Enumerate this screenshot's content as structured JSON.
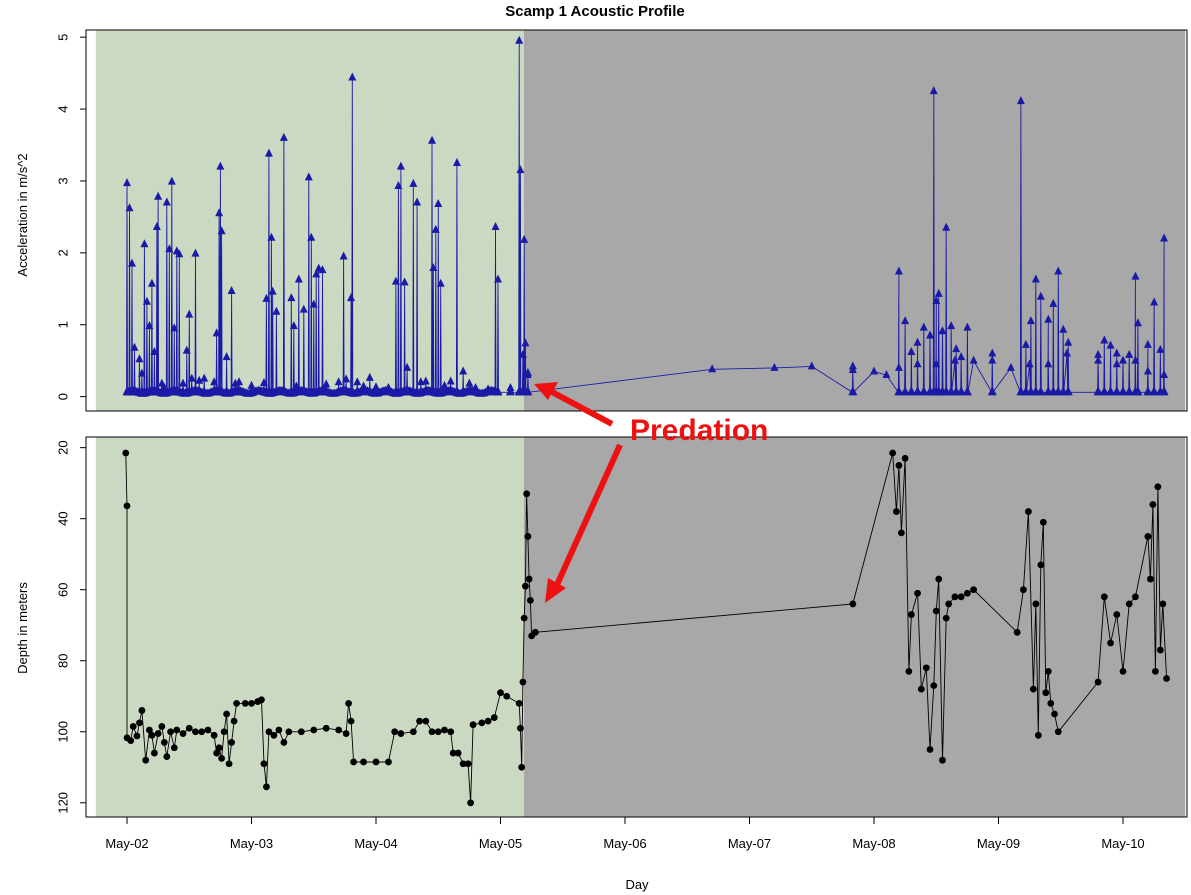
{
  "chart_data": {
    "type": "line",
    "title": "Scamp 1 Acoustic Profile",
    "xlabel": "Day",
    "x_ticks": [
      "May-02",
      "May-03",
      "May-04",
      "May-05",
      "May-06",
      "May-07",
      "May-08",
      "May-09",
      "May-10"
    ],
    "xlim": [
      "2011-05-01T18:00",
      "2011-05-10T12:00"
    ],
    "background_regions": [
      {
        "from": "2011-05-01T18:00",
        "to": "2011-05-05T04:30",
        "color": "#cbd9c3"
      },
      {
        "from": "2011-05-05T04:30",
        "to": "2011-05-10T12:00",
        "color": "#a8a8a8"
      }
    ],
    "panels": [
      {
        "name": "acceleration",
        "ylabel": "Acceleration in m/s^2",
        "ylim": [
          -0.2,
          5.1
        ],
        "y_ticks": [
          0,
          1,
          2,
          3,
          4,
          5
        ],
        "y_inverted": false,
        "marker": "triangle",
        "color": "#1a1aa6",
        "spikes": [
          [
            0.0,
            2.97
          ],
          [
            0.02,
            2.62
          ],
          [
            0.04,
            1.85
          ],
          [
            0.06,
            0.68
          ],
          [
            0.1,
            0.52
          ],
          [
            0.12,
            0.32
          ],
          [
            0.14,
            2.12
          ],
          [
            0.16,
            1.32
          ],
          [
            0.18,
            0.98
          ],
          [
            0.2,
            1.57
          ],
          [
            0.22,
            0.62
          ],
          [
            0.24,
            2.36
          ],
          [
            0.25,
            2.78
          ],
          [
            0.28,
            0.18
          ],
          [
            0.3,
            0.12
          ],
          [
            0.32,
            2.7
          ],
          [
            0.34,
            2.05
          ],
          [
            0.36,
            2.99
          ],
          [
            0.38,
            0.95
          ],
          [
            0.4,
            2.02
          ],
          [
            0.42,
            1.98
          ],
          [
            0.45,
            0.18
          ],
          [
            0.48,
            0.64
          ],
          [
            0.5,
            1.14
          ],
          [
            0.52,
            0.25
          ],
          [
            0.55,
            1.99
          ],
          [
            0.58,
            0.22
          ],
          [
            0.62,
            0.25
          ],
          [
            0.7,
            0.2
          ],
          [
            0.72,
            0.88
          ],
          [
            0.74,
            2.55
          ],
          [
            0.75,
            3.2
          ],
          [
            0.76,
            2.3
          ],
          [
            0.8,
            0.55
          ],
          [
            0.84,
            1.47
          ],
          [
            0.87,
            0.18
          ],
          [
            0.9,
            0.2
          ],
          [
            1.0,
            0.15
          ],
          [
            1.1,
            0.19
          ],
          [
            1.12,
            1.36
          ],
          [
            1.14,
            3.38
          ],
          [
            1.16,
            2.21
          ],
          [
            1.17,
            1.46
          ],
          [
            1.2,
            1.18
          ],
          [
            1.26,
            3.6
          ],
          [
            1.32,
            1.37
          ],
          [
            1.34,
            0.98
          ],
          [
            1.36,
            0.14
          ],
          [
            1.38,
            1.63
          ],
          [
            1.42,
            1.21
          ],
          [
            1.46,
            3.05
          ],
          [
            1.48,
            2.21
          ],
          [
            1.5,
            1.28
          ],
          [
            1.52,
            1.7
          ],
          [
            1.54,
            1.78
          ],
          [
            1.57,
            1.76
          ],
          [
            1.6,
            0.17
          ],
          [
            1.7,
            0.2
          ],
          [
            1.74,
            1.95
          ],
          [
            1.76,
            0.24
          ],
          [
            1.8,
            1.37
          ],
          [
            1.81,
            4.44
          ],
          [
            1.85,
            0.2
          ],
          [
            1.9,
            0.14
          ],
          [
            1.95,
            0.26
          ],
          [
            2.0,
            0.13
          ],
          [
            2.1,
            0.12
          ],
          [
            2.16,
            1.6
          ],
          [
            2.18,
            2.93
          ],
          [
            2.2,
            3.2
          ],
          [
            2.23,
            1.59
          ],
          [
            2.25,
            0.4
          ],
          [
            2.3,
            2.96
          ],
          [
            2.33,
            2.7
          ],
          [
            2.36,
            0.2
          ],
          [
            2.4,
            0.21
          ],
          [
            2.45,
            3.56
          ],
          [
            2.46,
            1.79
          ],
          [
            2.48,
            2.32
          ],
          [
            2.5,
            2.68
          ],
          [
            2.52,
            1.57
          ],
          [
            2.55,
            0.15
          ],
          [
            2.6,
            0.21
          ],
          [
            2.65,
            3.25
          ],
          [
            2.7,
            0.35
          ],
          [
            2.75,
            0.18
          ],
          [
            2.8,
            0.12
          ],
          [
            2.9,
            0.1
          ],
          [
            2.96,
            2.36
          ],
          [
            2.98,
            1.63
          ],
          [
            3.08,
            0.12
          ],
          [
            3.15,
            4.95
          ],
          [
            3.16,
            3.15
          ],
          [
            3.18,
            0.58
          ],
          [
            3.19,
            2.18
          ],
          [
            3.2,
            0.74
          ],
          [
            3.22,
            0.3
          ],
          [
            5.83,
            0.42
          ],
          [
            6.2,
            1.74
          ],
          [
            6.25,
            1.05
          ],
          [
            6.3,
            0.62
          ],
          [
            6.35,
            0.75
          ],
          [
            6.4,
            0.96
          ],
          [
            6.45,
            0.85
          ],
          [
            6.48,
            4.25
          ],
          [
            6.5,
            1.33
          ],
          [
            6.52,
            1.43
          ],
          [
            6.55,
            0.91
          ],
          [
            6.58,
            2.35
          ],
          [
            6.62,
            0.98
          ],
          [
            6.66,
            0.66
          ],
          [
            6.7,
            0.55
          ],
          [
            6.75,
            0.96
          ],
          [
            6.95,
            0.6
          ],
          [
            7.18,
            4.11
          ],
          [
            7.22,
            0.72
          ],
          [
            7.26,
            1.05
          ],
          [
            7.3,
            1.63
          ],
          [
            7.34,
            1.39
          ],
          [
            7.4,
            1.07
          ],
          [
            7.44,
            1.29
          ],
          [
            7.48,
            1.74
          ],
          [
            7.52,
            0.93
          ],
          [
            7.56,
            0.75
          ],
          [
            7.8,
            0.58
          ],
          [
            7.85,
            0.78
          ],
          [
            7.9,
            0.71
          ],
          [
            7.95,
            0.6
          ],
          [
            8.0,
            0.5
          ],
          [
            8.05,
            0.58
          ],
          [
            8.1,
            1.67
          ],
          [
            8.12,
            1.02
          ],
          [
            8.2,
            0.72
          ],
          [
            8.25,
            1.31
          ],
          [
            8.3,
            0.65
          ],
          [
            8.33,
            2.2
          ]
        ],
        "ridge": [
          [
            3.22,
            0.33
          ],
          [
            4.7,
            0.38
          ],
          [
            5.2,
            0.4
          ],
          [
            5.5,
            0.42
          ],
          [
            5.83,
            0.37
          ],
          [
            6.0,
            0.35
          ],
          [
            6.1,
            0.3
          ],
          [
            6.2,
            0.4
          ],
          [
            6.35,
            0.45
          ],
          [
            6.5,
            0.45
          ],
          [
            6.65,
            0.5
          ],
          [
            6.8,
            0.5
          ],
          [
            6.95,
            0.5
          ],
          [
            7.1,
            0.4
          ],
          [
            7.25,
            0.45
          ],
          [
            7.4,
            0.45
          ],
          [
            7.55,
            0.6
          ],
          [
            7.8,
            0.5
          ],
          [
            7.95,
            0.45
          ],
          [
            8.1,
            0.5
          ],
          [
            8.2,
            0.35
          ],
          [
            8.33,
            0.3
          ]
        ]
      },
      {
        "name": "depth",
        "ylabel": "Depth in meters",
        "ylim": [
          124,
          17
        ],
        "y_ticks": [
          20,
          40,
          60,
          80,
          100,
          120
        ],
        "y_inverted": true,
        "marker": "circle",
        "color": "#000000",
        "points": [
          [
            -0.01,
            21.5
          ],
          [
            0.0,
            36.4
          ],
          [
            0.0,
            101.7
          ],
          [
            0.03,
            102.5
          ],
          [
            0.05,
            98.5
          ],
          [
            0.08,
            101.2
          ],
          [
            0.1,
            97.5
          ],
          [
            0.12,
            94.0
          ],
          [
            0.15,
            108.0
          ],
          [
            0.18,
            99.5
          ],
          [
            0.2,
            101.0
          ],
          [
            0.22,
            106.0
          ],
          [
            0.25,
            100.5
          ],
          [
            0.28,
            98.5
          ],
          [
            0.3,
            103.0
          ],
          [
            0.32,
            107.0
          ],
          [
            0.35,
            100.0
          ],
          [
            0.38,
            104.5
          ],
          [
            0.4,
            99.5
          ],
          [
            0.45,
            100.5
          ],
          [
            0.5,
            99.0
          ],
          [
            0.55,
            100.0
          ],
          [
            0.6,
            100.0
          ],
          [
            0.65,
            99.5
          ],
          [
            0.7,
            101.0
          ],
          [
            0.72,
            106.0
          ],
          [
            0.74,
            104.5
          ],
          [
            0.76,
            107.5
          ],
          [
            0.78,
            100.0
          ],
          [
            0.8,
            95.0
          ],
          [
            0.82,
            109.0
          ],
          [
            0.84,
            103.0
          ],
          [
            0.86,
            97.0
          ],
          [
            0.88,
            92.0
          ],
          [
            0.95,
            92.0
          ],
          [
            1.0,
            92.0
          ],
          [
            1.05,
            91.5
          ],
          [
            1.08,
            91.0
          ],
          [
            1.1,
            109.0
          ],
          [
            1.12,
            115.5
          ],
          [
            1.14,
            100.0
          ],
          [
            1.18,
            101.0
          ],
          [
            1.22,
            99.5
          ],
          [
            1.26,
            103.0
          ],
          [
            1.3,
            100.0
          ],
          [
            1.4,
            100.0
          ],
          [
            1.5,
            99.5
          ],
          [
            1.6,
            99.0
          ],
          [
            1.7,
            99.5
          ],
          [
            1.76,
            100.5
          ],
          [
            1.78,
            92.0
          ],
          [
            1.8,
            97.0
          ],
          [
            1.82,
            108.5
          ],
          [
            1.9,
            108.5
          ],
          [
            2.0,
            108.5
          ],
          [
            2.1,
            108.5
          ],
          [
            2.15,
            100.0
          ],
          [
            2.2,
            100.5
          ],
          [
            2.3,
            100.0
          ],
          [
            2.35,
            97.0
          ],
          [
            2.4,
            97.0
          ],
          [
            2.45,
            100.0
          ],
          [
            2.5,
            100.0
          ],
          [
            2.55,
            99.5
          ],
          [
            2.6,
            100.0
          ],
          [
            2.62,
            106.0
          ],
          [
            2.66,
            106.0
          ],
          [
            2.7,
            109.0
          ],
          [
            2.74,
            109.0
          ],
          [
            2.76,
            120.0
          ],
          [
            2.78,
            98.0
          ],
          [
            2.85,
            97.5
          ],
          [
            2.9,
            97.0
          ],
          [
            2.95,
            96.0
          ],
          [
            3.0,
            89.0
          ],
          [
            3.05,
            90.0
          ],
          [
            3.15,
            92.0
          ],
          [
            3.16,
            99.0
          ],
          [
            3.17,
            110.0
          ],
          [
            3.18,
            86.0
          ],
          [
            3.19,
            68.0
          ],
          [
            3.2,
            59.0
          ],
          [
            3.21,
            33.0
          ],
          [
            3.22,
            45.0
          ],
          [
            3.23,
            57.0
          ],
          [
            3.24,
            63.0
          ],
          [
            3.25,
            73.0
          ],
          [
            3.28,
            72.0
          ],
          [
            5.83,
            64.0
          ],
          [
            6.15,
            21.5
          ],
          [
            6.18,
            38.0
          ],
          [
            6.2,
            25.0
          ],
          [
            6.22,
            44.0
          ],
          [
            6.25,
            23.0
          ],
          [
            6.28,
            83.0
          ],
          [
            6.3,
            67.0
          ],
          [
            6.35,
            61.0
          ],
          [
            6.38,
            88.0
          ],
          [
            6.42,
            82.0
          ],
          [
            6.45,
            105.0
          ],
          [
            6.48,
            87.0
          ],
          [
            6.5,
            66.0
          ],
          [
            6.52,
            57.0
          ],
          [
            6.55,
            108.0
          ],
          [
            6.58,
            68.0
          ],
          [
            6.6,
            64.0
          ],
          [
            6.65,
            62.0
          ],
          [
            6.7,
            62.0
          ],
          [
            6.75,
            61.0
          ],
          [
            6.8,
            60.0
          ],
          [
            7.15,
            72.0
          ],
          [
            7.2,
            60.0
          ],
          [
            7.24,
            38.0
          ],
          [
            7.28,
            88.0
          ],
          [
            7.3,
            64.0
          ],
          [
            7.32,
            101.0
          ],
          [
            7.34,
            53.0
          ],
          [
            7.36,
            41.0
          ],
          [
            7.38,
            89.0
          ],
          [
            7.4,
            83.0
          ],
          [
            7.42,
            92.0
          ],
          [
            7.45,
            95.0
          ],
          [
            7.48,
            100.0
          ],
          [
            7.8,
            86.0
          ],
          [
            7.85,
            62.0
          ],
          [
            7.9,
            75.0
          ],
          [
            7.95,
            67.0
          ],
          [
            8.0,
            83.0
          ],
          [
            8.05,
            64.0
          ],
          [
            8.1,
            62.0
          ],
          [
            8.2,
            45.0
          ],
          [
            8.22,
            57.0
          ],
          [
            8.24,
            36.0
          ],
          [
            8.26,
            83.0
          ],
          [
            8.28,
            31.0
          ],
          [
            8.3,
            77.0
          ],
          [
            8.32,
            64.0
          ],
          [
            8.35,
            85.0
          ]
        ]
      }
    ],
    "annotations": [
      {
        "text": "Predation",
        "color": "#ee1111",
        "arrows_to": [
          "acceleration",
          "depth"
        ]
      }
    ]
  }
}
